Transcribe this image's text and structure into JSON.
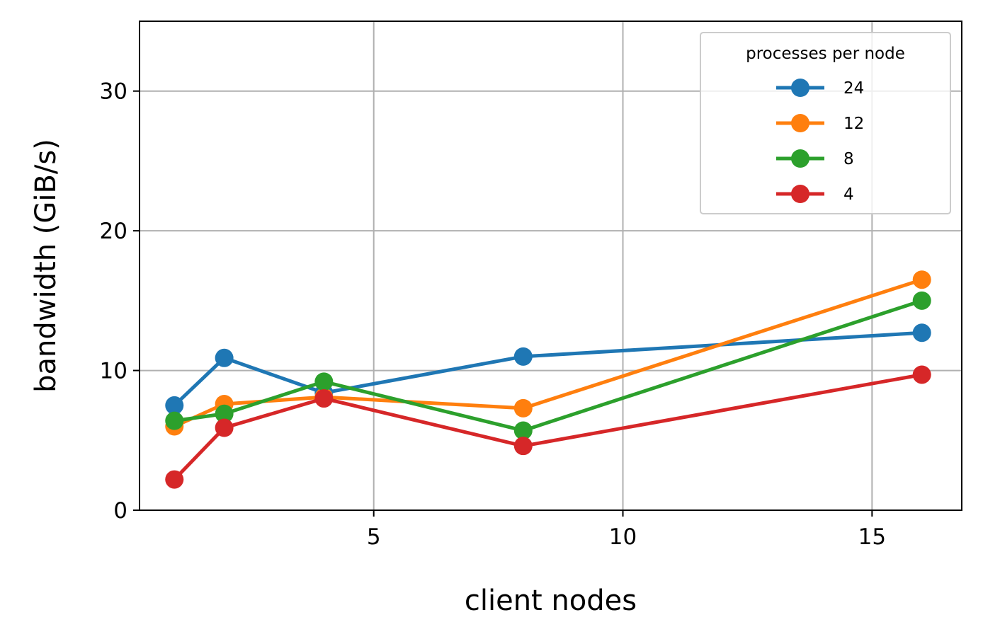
{
  "chart_data": {
    "type": "line",
    "title": "",
    "xlabel": "client nodes",
    "ylabel": "bandwidth (GiB/s)",
    "xlim": [
      0.3,
      16.8
    ],
    "ylim": [
      0,
      35
    ],
    "xticks": [
      5,
      10,
      15
    ],
    "yticks": [
      0,
      10,
      20,
      30
    ],
    "grid": true,
    "legend": {
      "title": "processes per node",
      "placement": "top-right"
    },
    "x": [
      1,
      2,
      4,
      8,
      16
    ],
    "series": [
      {
        "name": "24",
        "color": "#1f77b4",
        "values": [
          7.5,
          10.9,
          8.4,
          11.0,
          12.7
        ]
      },
      {
        "name": "12",
        "color": "#ff7f0e",
        "values": [
          6.0,
          7.6,
          8.1,
          7.3,
          16.5
        ]
      },
      {
        "name": "8",
        "color": "#2ca02c",
        "values": [
          6.4,
          6.9,
          9.2,
          5.7,
          15.0
        ]
      },
      {
        "name": "4",
        "color": "#d62728",
        "values": [
          2.2,
          5.9,
          8.0,
          4.6,
          9.7
        ]
      }
    ]
  }
}
